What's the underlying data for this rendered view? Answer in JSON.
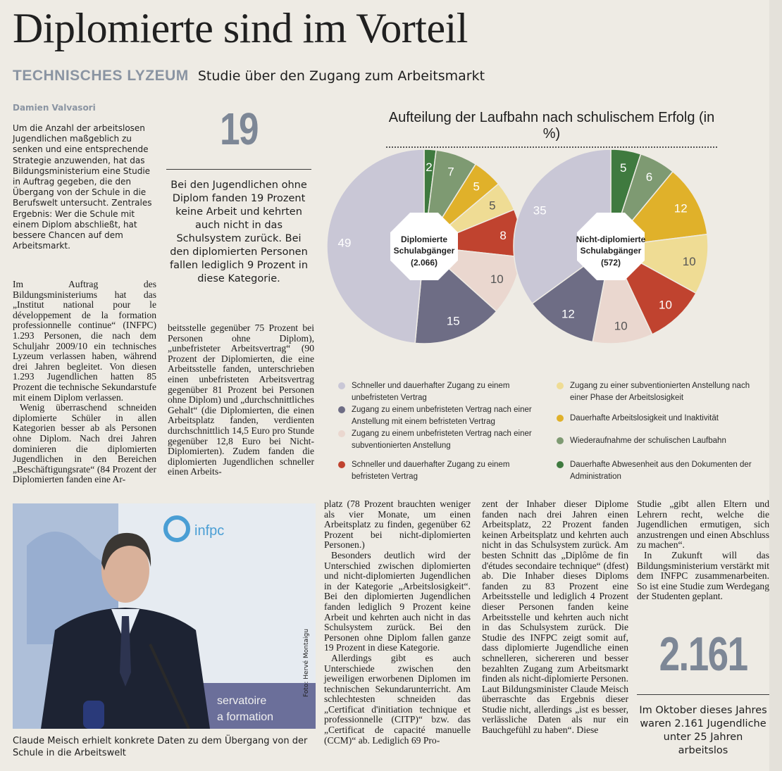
{
  "article": {
    "headline": "Diplomierte sind im Vorteil",
    "kicker": "TECHNISCHES LYZEUM",
    "subhead": "Studie über den Zugang zum Arbeitsmarkt",
    "byline": "Damien Valvasori",
    "intro": "Um die Anzahl der arbeitslosen Jugendlichen maßgeblich zu senken und eine entsprechende Strategie anzuwenden, hat das Bildungsministerium eine Studie in Auftrag gegeben, die den Übergang von der Schule in die Berufswelt untersucht. Zentrales Ergebnis: Wer die Schule mit einem Diplom abschließt, hat bessere Chancen auf dem Arbeitsmarkt.",
    "col1_p1": "Im Auftrag des Bildungsministeriums hat das „Institut national pour le développement de la formation professionnelle continue“ (INFPC) 1.293 Personen, die nach dem Schuljahr 2009/10 ein technisches Lyzeum verlassen haben, während drei Jahren begleitet. Von diesen 1.293 Jugendlichen hatten 85 Prozent die technische Sekundarstufe mit einem Diplom verlassen.",
    "col1_p2": "Wenig überraschend schneiden diplomierte Schüler in allen Kategorien besser ab als Personen ohne Diplom. Nach drei Jahren dominieren die diplomierten Jugendlichen in den Bereichen „Beschäftigungsrate“ (84 Prozent der Diplomierten fanden eine Ar-",
    "col2_p1": "beitsstelle gegenüber 75 Prozent bei Personen ohne Diplom), „unbefristeter Arbeitsvertrag“ (90 Prozent der Diplomierten, die eine Arbeitsstelle fanden, unterschrieben einen unbefristeten Arbeitsvertrag gegenüber 81 Prozent bei Personen ohne Diplom) und „durchschnittliches Gehalt“ (die Diplomierten, die einen Arbeitsplatz fanden, verdienten durchschnittlich 14,5 Euro pro Stunde gegenüber 12,8 Euro bei Nicht-Diplomierten). Zudem fanden die diplomierten Jugendlichen schneller einen Arbeits-",
    "col3_p1": "platz (78 Prozent brauchten weniger als vier Monate, um einen Arbeitsplatz zu finden, gegenüber 62 Prozent bei nicht-diplomierten Personen.)",
    "col3_p2": "Besonders deutlich wird der Unterschied zwischen diplomierten und nicht-diplomierten Jugendlichen in der Kategorie „Arbeitslosigkeit“. Bei den diplomierten Jugendlichen fanden lediglich 9 Prozent keine Arbeit und kehrten auch nicht in das Schulsystem zurück. Bei den Personen ohne Diplom fallen ganze 19 Prozent in diese Kategorie.",
    "col3_p3": "Allerdings gibt es auch Unterschiede zwischen den jeweiligen erworbenen Diplomen im technischen Sekundarunterricht. Am schlechtesten schneiden das „Certificat d'initiation technique et professionnelle (CITP)“ bzw. das „Certificat de capacité manuelle (CCM)“ ab. Lediglich 69 Pro-",
    "col4_p1": "zent der Inhaber dieser Diplome fanden nach drei Jahren einen Arbeitsplatz, 22 Prozent fanden keinen Arbeitsplatz und kehrten auch nicht in das Schulsystem zurück. Am besten Schnitt das „Diplôme de fin d'études secondaire technique“ (dfest) ab. Die Inhaber dieses Diploms fanden zu 83 Prozent eine Arbeitsstelle und lediglich 4 Prozent dieser Personen fanden keine Arbeitsstelle und kehrten auch nicht in das Schulsystem zurück. Die Studie des INFPC zeigt somit auf, dass diplomierte Jugendliche einen schnelleren, sichereren und besser bezahlten Zugang zum Arbeitsmarkt finden als nicht-diplomierte Personen. Laut Bildungsminister Claude Meisch überraschte das Ergebnis dieser Studie nicht, allerdings „ist es besser, verlässliche Daten als nur ein Bauchgefühl zu haben“. Diese",
    "col5_p1": "Studie „gibt allen Eltern und Lehrern recht, welche die Jugendlichen ermutigen, sich anzustrengen und einen Abschluss zu machen“.",
    "col5_p2": "In Zukunft will das Bildungsministerium verstärkt mit dem INFPC zusammenarbeiten. So ist eine Studie zum Werdegang der Studenten geplant."
  },
  "highlight_19": {
    "number": "19",
    "text": "Bei den Jugendlichen ohne Diplom fanden 19 Prozent keine Arbeit und kehrten auch nicht in das Schulsystem zurück. Bei den diplomierten Personen fallen lediglich 9 Prozent in diese Kategorie."
  },
  "highlight_2161": {
    "number": "2.161",
    "text": "Im Oktober dieses Jahres waren 2.161 Jugendliche unter 25 Jahren arbeitslos"
  },
  "photo": {
    "caption": "Claude Meisch erhielt konkrete Daten zu dem Übergang von der Schule in die Arbeitswelt",
    "credit": "Foto: Hervé Montaigu",
    "backdrop_text": "infpc",
    "banner_text_1": "servatoire",
    "banner_text_2": "a formation"
  },
  "chart_data": {
    "type": "pie",
    "title": "Aufteilung der Laufbahn nach schulischem Erfolg (in %)",
    "categories": [
      "Dauerhafte Abwesenheit aus den Dokumenten der Administration",
      "Wiederaufnahme der schulischen Laufbahn",
      "Dauerhafte Arbeitslosigkeit und Inaktivität",
      "Zugang zu einer subventionierten Anstellung nach einer Phase der Arbeitslosigkeit",
      "Schneller und dauerhafter Zugang zu einem befristeten Vertrag",
      "Zugang zu einem unbefristeten Vertrag nach einer subventionierten Anstellung",
      "Zugang zu einem unbefristeten Vertrag nach einer Anstellung mit einem befristeten Vertrag",
      "Schneller und dauerhafter Zugang zu einem unbefristeten Vertrag"
    ],
    "colors": [
      "#3f7a3f",
      "#7e9a72",
      "#e0b12a",
      "#efdc94",
      "#c0432f",
      "#ead7cf",
      "#6e6d85",
      "#c9c7d6"
    ],
    "series": [
      {
        "name": "Diplomierte Schulabgänger",
        "count": "(2.066)",
        "values": [
          2,
          7,
          5,
          5,
          8,
          10,
          15,
          49
        ]
      },
      {
        "name": "Nicht-diplomierte Schulabgänger",
        "count": "(572)",
        "values": [
          5,
          6,
          12,
          10,
          10,
          10,
          12,
          35
        ]
      }
    ],
    "legend": [
      "Schneller und dauerhafter Zugang zu einem unbefristeten Vertrag",
      "Zugang zu einem unbefristeten Vertrag nach einer Anstellung mit einem befristeten Vertrag",
      "Zugang zu einem unbefristeten Vertrag nach einer subventionierten Anstellung",
      "Schneller und dauerhafter Zugang zu einem befristeten Vertrag",
      "Zugang zu einer subventionierten Anstellung nach einer Phase der Arbeitslosigkeit",
      "Dauerhafte Arbeitslosigkeit und Inaktivität",
      "Wiederaufnahme der schulischen Laufbahn",
      "Dauerhafte Abwesenheit aus den Dokumenten der Administration"
    ],
    "legend_colors": [
      "#c9c7d6",
      "#6e6d85",
      "#ead7cf",
      "#c0432f",
      "#efdc94",
      "#e0b12a",
      "#7e9a72",
      "#3f7a3f"
    ]
  }
}
